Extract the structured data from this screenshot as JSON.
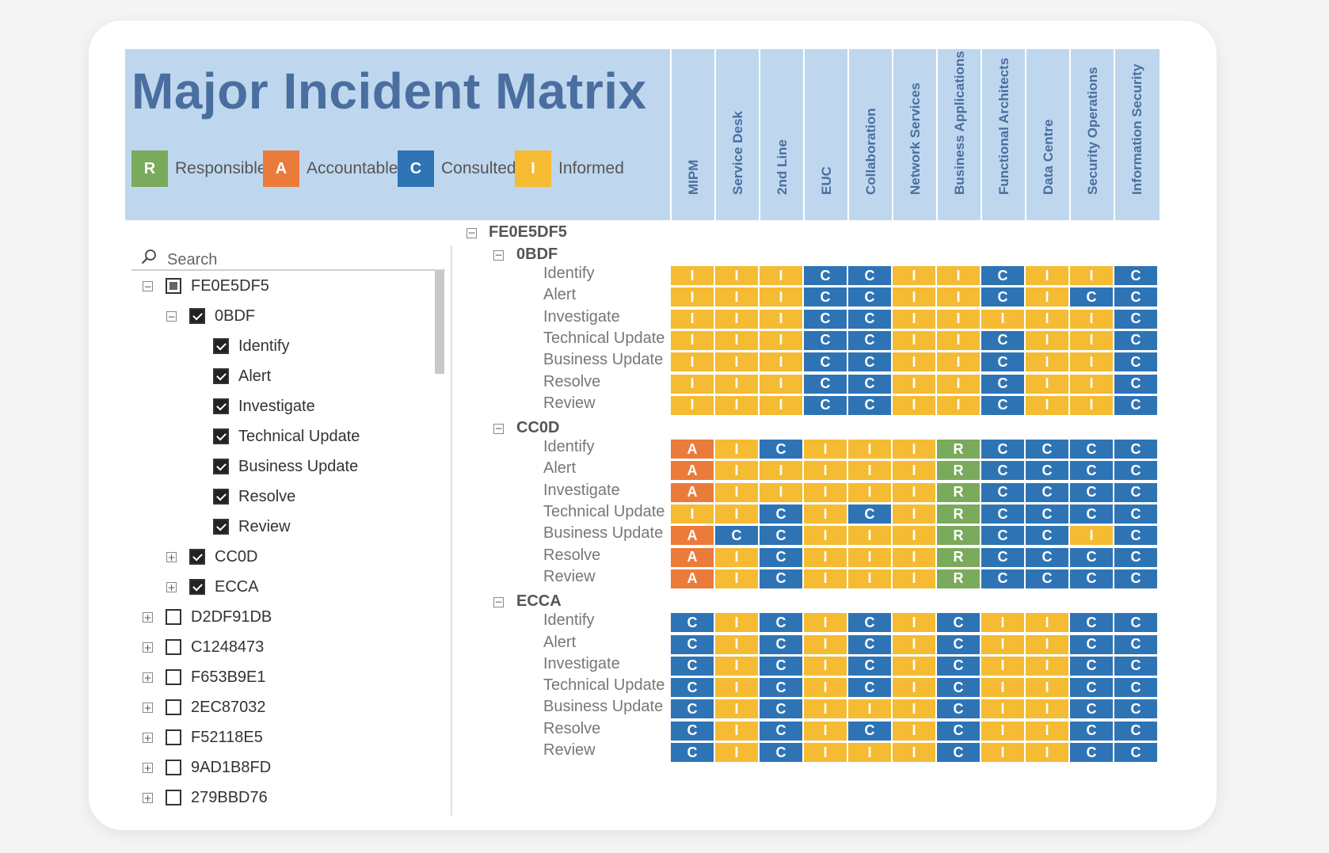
{
  "title": "Major Incident Matrix",
  "legend": [
    {
      "code": "R",
      "label": "Responsible",
      "color": "#7aaa5b"
    },
    {
      "code": "A",
      "label": "Accountable",
      "color": "#ea7b3b"
    },
    {
      "code": "C",
      "label": "Consulted",
      "color": "#2e74b5"
    },
    {
      "code": "I",
      "label": "Informed",
      "color": "#f4bb33"
    }
  ],
  "columns": [
    "MIPM",
    "Service Desk",
    "2nd Line",
    "EUC",
    "Collaboration",
    "Network Services",
    "Business Applications",
    "Functional Architects",
    "Data Centre",
    "Security Operations",
    "Information Security"
  ],
  "search": {
    "placeholder": "Search"
  },
  "tree": [
    {
      "label": "FE0E5DF5",
      "level": 0,
      "expander": "⊟",
      "check": "partial"
    },
    {
      "label": "0BDF",
      "level": 1,
      "expander": "⊟",
      "check": "checked"
    },
    {
      "label": "Identify",
      "level": 2,
      "expander": "",
      "check": "checked"
    },
    {
      "label": "Alert",
      "level": 2,
      "expander": "",
      "check": "checked"
    },
    {
      "label": "Investigate",
      "level": 2,
      "expander": "",
      "check": "checked"
    },
    {
      "label": "Technical Update",
      "level": 2,
      "expander": "",
      "check": "checked"
    },
    {
      "label": "Business Update",
      "level": 2,
      "expander": "",
      "check": "checked"
    },
    {
      "label": "Resolve",
      "level": 2,
      "expander": "",
      "check": "checked"
    },
    {
      "label": "Review",
      "level": 2,
      "expander": "",
      "check": "checked"
    },
    {
      "label": "CC0D",
      "level": 1,
      "expander": "⊞",
      "check": "checked"
    },
    {
      "label": "ECCA",
      "level": 1,
      "expander": "⊞",
      "check": "checked"
    },
    {
      "label": "D2DF91DB",
      "level": 0,
      "expander": "⊞",
      "check": "unchecked"
    },
    {
      "label": "C1248473",
      "level": 0,
      "expander": "⊞",
      "check": "unchecked"
    },
    {
      "label": "F653B9E1",
      "level": 0,
      "expander": "⊞",
      "check": "unchecked"
    },
    {
      "label": "2EC87032",
      "level": 0,
      "expander": "⊞",
      "check": "unchecked"
    },
    {
      "label": "F52118E5",
      "level": 0,
      "expander": "⊞",
      "check": "unchecked"
    },
    {
      "label": "9AD1B8FD",
      "level": 0,
      "expander": "⊞",
      "check": "unchecked"
    },
    {
      "label": "279BBD76",
      "level": 0,
      "expander": "⊞",
      "check": "unchecked"
    }
  ],
  "matrix": {
    "root_label": "FE0E5DF5",
    "groups": [
      {
        "label": "0BDF",
        "rows": [
          {
            "label": "Identify",
            "values": [
              "I",
              "I",
              "I",
              "C",
              "C",
              "I",
              "I",
              "C",
              "I",
              "I",
              "C"
            ]
          },
          {
            "label": "Alert",
            "values": [
              "I",
              "I",
              "I",
              "C",
              "C",
              "I",
              "I",
              "C",
              "I",
              "C",
              "C"
            ]
          },
          {
            "label": "Investigate",
            "values": [
              "I",
              "I",
              "I",
              "C",
              "C",
              "I",
              "I",
              "I",
              "I",
              "I",
              "C"
            ]
          },
          {
            "label": "Technical Update",
            "values": [
              "I",
              "I",
              "I",
              "C",
              "C",
              "I",
              "I",
              "C",
              "I",
              "I",
              "C"
            ]
          },
          {
            "label": "Business Update",
            "values": [
              "I",
              "I",
              "I",
              "C",
              "C",
              "I",
              "I",
              "C",
              "I",
              "I",
              "C"
            ]
          },
          {
            "label": "Resolve",
            "values": [
              "I",
              "I",
              "I",
              "C",
              "C",
              "I",
              "I",
              "C",
              "I",
              "I",
              "C"
            ]
          },
          {
            "label": "Review",
            "values": [
              "I",
              "I",
              "I",
              "C",
              "C",
              "I",
              "I",
              "C",
              "I",
              "I",
              "C"
            ]
          }
        ]
      },
      {
        "label": "CC0D",
        "rows": [
          {
            "label": "Identify",
            "values": [
              "A",
              "I",
              "C",
              "I",
              "I",
              "I",
              "R",
              "C",
              "C",
              "C",
              "C"
            ]
          },
          {
            "label": "Alert",
            "values": [
              "A",
              "I",
              "I",
              "I",
              "I",
              "I",
              "R",
              "C",
              "C",
              "C",
              "C"
            ]
          },
          {
            "label": "Investigate",
            "values": [
              "A",
              "I",
              "I",
              "I",
              "I",
              "I",
              "R",
              "C",
              "C",
              "C",
              "C"
            ]
          },
          {
            "label": "Technical Update",
            "values": [
              "I",
              "I",
              "C",
              "I",
              "C",
              "I",
              "R",
              "C",
              "C",
              "C",
              "C"
            ]
          },
          {
            "label": "Business Update",
            "values": [
              "A",
              "C",
              "C",
              "I",
              "I",
              "I",
              "R",
              "C",
              "C",
              "I",
              "C"
            ]
          },
          {
            "label": "Resolve",
            "values": [
              "A",
              "I",
              "C",
              "I",
              "I",
              "I",
              "R",
              "C",
              "C",
              "C",
              "C"
            ]
          },
          {
            "label": "Review",
            "values": [
              "A",
              "I",
              "C",
              "I",
              "I",
              "I",
              "R",
              "C",
              "C",
              "C",
              "C"
            ]
          }
        ]
      },
      {
        "label": "ECCA",
        "rows": [
          {
            "label": "Identify",
            "values": [
              "C",
              "I",
              "C",
              "I",
              "C",
              "I",
              "C",
              "I",
              "I",
              "C",
              "C"
            ]
          },
          {
            "label": "Alert",
            "values": [
              "C",
              "I",
              "C",
              "I",
              "C",
              "I",
              "C",
              "I",
              "I",
              "C",
              "C"
            ]
          },
          {
            "label": "Investigate",
            "values": [
              "C",
              "I",
              "C",
              "I",
              "C",
              "I",
              "C",
              "I",
              "I",
              "C",
              "C"
            ]
          },
          {
            "label": "Technical Update",
            "values": [
              "C",
              "I",
              "C",
              "I",
              "C",
              "I",
              "C",
              "I",
              "I",
              "C",
              "C"
            ]
          },
          {
            "label": "Business Update",
            "values": [
              "C",
              "I",
              "C",
              "I",
              "I",
              "I",
              "C",
              "I",
              "I",
              "C",
              "C"
            ]
          },
          {
            "label": "Resolve",
            "values": [
              "C",
              "I",
              "C",
              "I",
              "C",
              "I",
              "C",
              "I",
              "I",
              "C",
              "C"
            ]
          },
          {
            "label": "Review",
            "values": [
              "C",
              "I",
              "C",
              "I",
              "I",
              "I",
              "C",
              "I",
              "I",
              "C",
              "C"
            ]
          }
        ]
      }
    ]
  }
}
